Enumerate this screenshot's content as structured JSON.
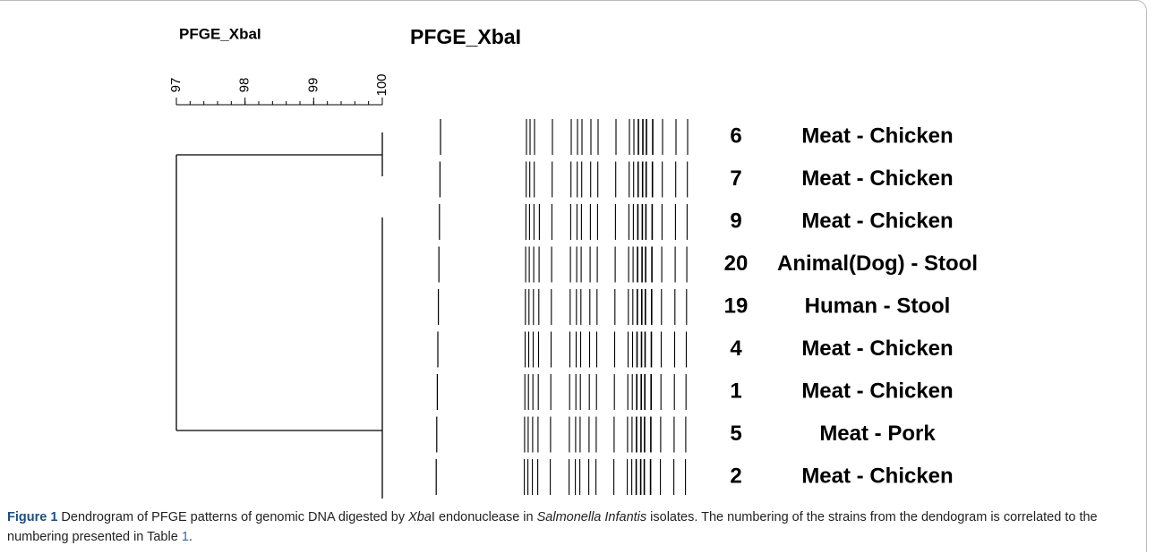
{
  "figure": {
    "panel_titles": [
      "PFGE_XbaI",
      "PFGE_XbaI"
    ],
    "scale_ticks": [
      97,
      98,
      99,
      100
    ],
    "rows": [
      {
        "number": "6",
        "label": "Meat - Chicken"
      },
      {
        "number": "7",
        "label": "Meat - Chicken"
      },
      {
        "number": "9",
        "label": "Meat - Chicken"
      },
      {
        "number": "20",
        "label": "Animal(Dog) - Stool"
      },
      {
        "number": "19",
        "label": "Human - Stool"
      },
      {
        "number": "4",
        "label": "Meat - Chicken"
      },
      {
        "number": "1",
        "label": "Meat - Chicken"
      },
      {
        "number": "5",
        "label": "Meat - Pork"
      },
      {
        "number": "2",
        "label": "Meat - Chicken"
      }
    ],
    "caption": {
      "label": "Figure 1",
      "parts": [
        " Dendrogram of PFGE patterns of genomic DNA digested by ",
        "Xba",
        "I endonuclease in ",
        "Salmonella Infantis",
        " isolates. The numbering of the strains from the dendogram is correlated to the numbering presented in Table ",
        "1",
        "."
      ]
    }
  }
}
